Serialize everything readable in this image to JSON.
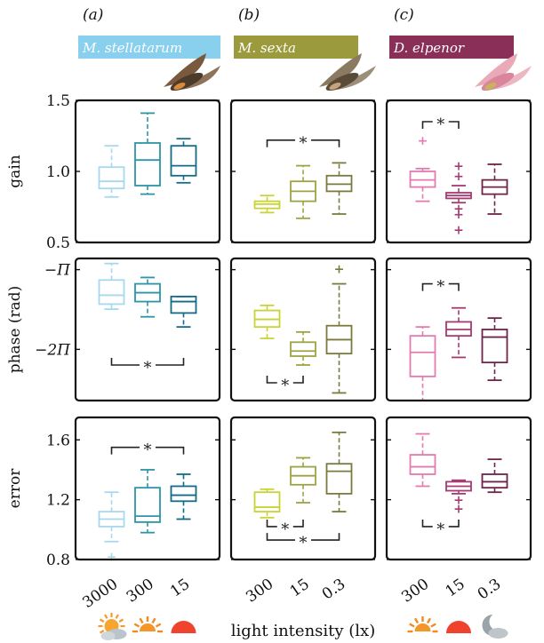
{
  "figure": {
    "panel_letters": [
      "(a)",
      "(b)",
      "(c)"
    ],
    "species": [
      "M. stellatarum",
      "M. sexta",
      "D. elpenor"
    ],
    "species_colors": [
      "#89cfee",
      "#9b9a3c",
      "#8a2f58"
    ],
    "row_labels": [
      "gain",
      "phase (rad)",
      "error"
    ],
    "xlabel": "light intensity (lx)",
    "tick_labels": [
      [
        "3000",
        "300",
        "15"
      ],
      [
        "300",
        "15",
        "0.3"
      ],
      [
        "300",
        "15",
        "0.3"
      ]
    ],
    "light_icons": [
      [
        "cloudy-sun-icon",
        "sunrise-icon",
        "sunset-icon"
      ],
      [
        "sunrise-icon",
        "sunset-icon",
        "moon-cloud-icon"
      ],
      [
        "sunrise-icon",
        "sunset-icon",
        "moon-cloud-icon"
      ]
    ],
    "box_colors": [
      [
        "#a6d8ee",
        "#2c95a8",
        "#136b88"
      ],
      [
        "#c9d335",
        "#9ea342",
        "#7a7a3e"
      ],
      [
        "#e37ab0",
        "#a63a72",
        "#6e2448"
      ]
    ],
    "sig_marker": "*"
  },
  "chart_data": [
    {
      "type": "box",
      "panel": "(a)",
      "row": "gain",
      "ylabel": "gain",
      "ylim": [
        0.5,
        1.5
      ],
      "yticks": [
        {
          "v": 0.5,
          "label": "0.5"
        },
        {
          "v": 1.0,
          "label": "1.0"
        },
        {
          "v": 1.5,
          "label": "1.5"
        }
      ],
      "categories": [
        "3000",
        "300",
        "15"
      ],
      "boxes": [
        {
          "whislo": 0.82,
          "q1": 0.88,
          "med": 0.93,
          "q3": 1.03,
          "whishi": 1.18,
          "fliers": []
        },
        {
          "whislo": 0.84,
          "q1": 0.9,
          "med": 1.08,
          "q3": 1.2,
          "whishi": 1.41,
          "fliers": []
        },
        {
          "whislo": 0.92,
          "q1": 0.97,
          "med": 1.04,
          "q3": 1.18,
          "whishi": 1.23,
          "fliers": []
        }
      ],
      "significance": []
    },
    {
      "type": "box",
      "panel": "(b)",
      "row": "gain",
      "ylabel": "",
      "ylim": [
        0.5,
        1.5
      ],
      "yticks": [
        {
          "v": 0.5,
          "label": ""
        },
        {
          "v": 1.0,
          "label": ""
        },
        {
          "v": 1.5,
          "label": ""
        }
      ],
      "categories": [
        "300",
        "15",
        "0.3"
      ],
      "boxes": [
        {
          "whislo": 0.71,
          "q1": 0.74,
          "med": 0.77,
          "q3": 0.79,
          "whishi": 0.83,
          "fliers": []
        },
        {
          "whislo": 0.67,
          "q1": 0.79,
          "med": 0.86,
          "q3": 0.93,
          "whishi": 1.04,
          "fliers": []
        },
        {
          "whislo": 0.7,
          "q1": 0.86,
          "med": 0.91,
          "q3": 0.97,
          "whishi": 1.06,
          "fliers": []
        }
      ],
      "significance": [
        {
          "from": 0,
          "to": 2,
          "y": 1.22,
          "dir": "down"
        }
      ]
    },
    {
      "type": "box",
      "panel": "(c)",
      "row": "gain",
      "ylabel": "",
      "ylim": [
        0.5,
        1.5
      ],
      "yticks": [
        {
          "v": 0.5,
          "label": ""
        },
        {
          "v": 1.0,
          "label": ""
        },
        {
          "v": 1.5,
          "label": ""
        }
      ],
      "categories": [
        "300",
        "15",
        "0.3"
      ],
      "boxes": [
        {
          "whislo": 0.79,
          "q1": 0.89,
          "med": 0.94,
          "q3": 1.0,
          "whishi": 1.02,
          "fliers": [
            1.22
          ]
        },
        {
          "whislo": 0.78,
          "q1": 0.81,
          "med": 0.83,
          "q3": 0.85,
          "whishi": 0.9,
          "fliers": [
            1.04,
            0.97,
            0.74,
            0.7,
            0.59
          ]
        },
        {
          "whislo": 0.7,
          "q1": 0.84,
          "med": 0.89,
          "q3": 0.94,
          "whishi": 1.05,
          "fliers": []
        }
      ],
      "significance": [
        {
          "from": 0,
          "to": 1,
          "y": 1.35,
          "dir": "down"
        }
      ]
    },
    {
      "type": "box",
      "panel": "(a)",
      "row": "phase",
      "ylabel": "phase (rad)",
      "ylim": [
        -8.3,
        -2.7
      ],
      "yticks": [
        {
          "v": -3.1416,
          "label": "−Π"
        },
        {
          "v": -6.2832,
          "label": "−2Π"
        }
      ],
      "categories": [
        "3000",
        "300",
        "15"
      ],
      "boxes": [
        {
          "whislo": -4.7,
          "q1": -4.5,
          "med": -4.15,
          "q3": -3.55,
          "whishi": -2.9,
          "fliers": []
        },
        {
          "whislo": -5.0,
          "q1": -4.4,
          "med": -4.05,
          "q3": -3.7,
          "whishi": -3.45,
          "fliers": []
        },
        {
          "whislo": -5.4,
          "q1": -4.85,
          "med": -4.4,
          "q3": -4.2,
          "whishi": -4.2,
          "fliers": []
        }
      ],
      "significance": [
        {
          "from": 0,
          "to": 2,
          "y": -6.9,
          "dir": "up"
        }
      ]
    },
    {
      "type": "box",
      "panel": "(b)",
      "row": "phase",
      "ylabel": "",
      "ylim": [
        -8.3,
        -2.7
      ],
      "yticks": [
        {
          "v": -3.1416,
          "label": ""
        },
        {
          "v": -6.2832,
          "label": ""
        }
      ],
      "categories": [
        "300",
        "15",
        "0.3"
      ],
      "boxes": [
        {
          "whislo": -5.85,
          "q1": -5.4,
          "med": -5.1,
          "q3": -4.75,
          "whishi": -4.55,
          "fliers": []
        },
        {
          "whislo": -6.9,
          "q1": -6.55,
          "med": -6.35,
          "q3": -6.0,
          "whishi": -5.6,
          "fliers": []
        },
        {
          "whislo": -8.0,
          "q1": -6.45,
          "med": -5.9,
          "q3": -5.35,
          "whishi": -3.7,
          "fliers": [
            -3.1
          ]
        }
      ],
      "significance": [
        {
          "from": 0,
          "to": 1,
          "y": -7.6,
          "dir": "up"
        }
      ]
    },
    {
      "type": "box",
      "panel": "(c)",
      "row": "phase",
      "ylabel": "",
      "ylim": [
        -8.3,
        -2.7
      ],
      "yticks": [
        {
          "v": -3.1416,
          "label": ""
        },
        {
          "v": -6.2832,
          "label": ""
        }
      ],
      "categories": [
        "300",
        "15",
        "0.3"
      ],
      "boxes": [
        {
          "whislo": -8.3,
          "q1": -7.35,
          "med": -6.4,
          "q3": -5.75,
          "whishi": -5.4,
          "fliers": []
        },
        {
          "whislo": -6.6,
          "q1": -5.75,
          "med": -5.5,
          "q3": -5.2,
          "whishi": -4.65,
          "fliers": []
        },
        {
          "whislo": -7.5,
          "q1": -6.8,
          "med": -5.8,
          "q3": -5.5,
          "whishi": -5.05,
          "fliers": []
        }
      ],
      "significance": [
        {
          "from": 0,
          "to": 1,
          "y": -3.7,
          "dir": "down"
        }
      ]
    },
    {
      "type": "box",
      "panel": "(a)",
      "row": "error",
      "ylabel": "error",
      "ylim": [
        0.8,
        1.75
      ],
      "yticks": [
        {
          "v": 0.8,
          "label": "0.8"
        },
        {
          "v": 1.2,
          "label": "1.2"
        },
        {
          "v": 1.6,
          "label": "1.6"
        }
      ],
      "categories": [
        "3000",
        "300",
        "15"
      ],
      "boxes": [
        {
          "whislo": 0.92,
          "q1": 1.02,
          "med": 1.07,
          "q3": 1.12,
          "whishi": 1.25,
          "fliers": [
            0.82
          ]
        },
        {
          "whislo": 0.98,
          "q1": 1.05,
          "med": 1.09,
          "q3": 1.28,
          "whishi": 1.4,
          "fliers": []
        },
        {
          "whislo": 1.07,
          "q1": 1.19,
          "med": 1.23,
          "q3": 1.29,
          "whishi": 1.37,
          "fliers": []
        }
      ],
      "significance": [
        {
          "from": 0,
          "to": 2,
          "y": 1.55,
          "dir": "down"
        }
      ]
    },
    {
      "type": "box",
      "panel": "(b)",
      "row": "error",
      "ylabel": "",
      "ylim": [
        0.8,
        1.75
      ],
      "yticks": [
        {
          "v": 0.8,
          "label": ""
        },
        {
          "v": 1.2,
          "label": ""
        },
        {
          "v": 1.6,
          "label": ""
        }
      ],
      "categories": [
        "300",
        "15",
        "0.3"
      ],
      "boxes": [
        {
          "whislo": 1.08,
          "q1": 1.12,
          "med": 1.15,
          "q3": 1.25,
          "whishi": 1.27,
          "fliers": []
        },
        {
          "whislo": 1.18,
          "q1": 1.3,
          "med": 1.36,
          "q3": 1.42,
          "whishi": 1.48,
          "fliers": []
        },
        {
          "whislo": 1.12,
          "q1": 1.24,
          "med": 1.39,
          "q3": 1.44,
          "whishi": 1.65,
          "fliers": []
        }
      ],
      "significance": [
        {
          "from": 0,
          "to": 1,
          "y": 1.02,
          "dir": "up"
        },
        {
          "from": 0,
          "to": 2,
          "y": 0.93,
          "dir": "up"
        }
      ]
    },
    {
      "type": "box",
      "panel": "(c)",
      "row": "error",
      "ylabel": "",
      "ylim": [
        0.8,
        1.75
      ],
      "yticks": [
        {
          "v": 0.8,
          "label": ""
        },
        {
          "v": 1.2,
          "label": ""
        },
        {
          "v": 1.6,
          "label": ""
        }
      ],
      "categories": [
        "300",
        "15",
        "0.3"
      ],
      "boxes": [
        {
          "whislo": 1.29,
          "q1": 1.37,
          "med": 1.42,
          "q3": 1.5,
          "whishi": 1.64,
          "fliers": []
        },
        {
          "whislo": 1.24,
          "q1": 1.26,
          "med": 1.29,
          "q3": 1.32,
          "whishi": 1.33,
          "fliers": [
            1.2,
            1.14
          ]
        },
        {
          "whislo": 1.25,
          "q1": 1.28,
          "med": 1.32,
          "q3": 1.37,
          "whishi": 1.47,
          "fliers": []
        }
      ],
      "significance": [
        {
          "from": 0,
          "to": 1,
          "y": 1.02,
          "dir": "up"
        }
      ]
    }
  ]
}
